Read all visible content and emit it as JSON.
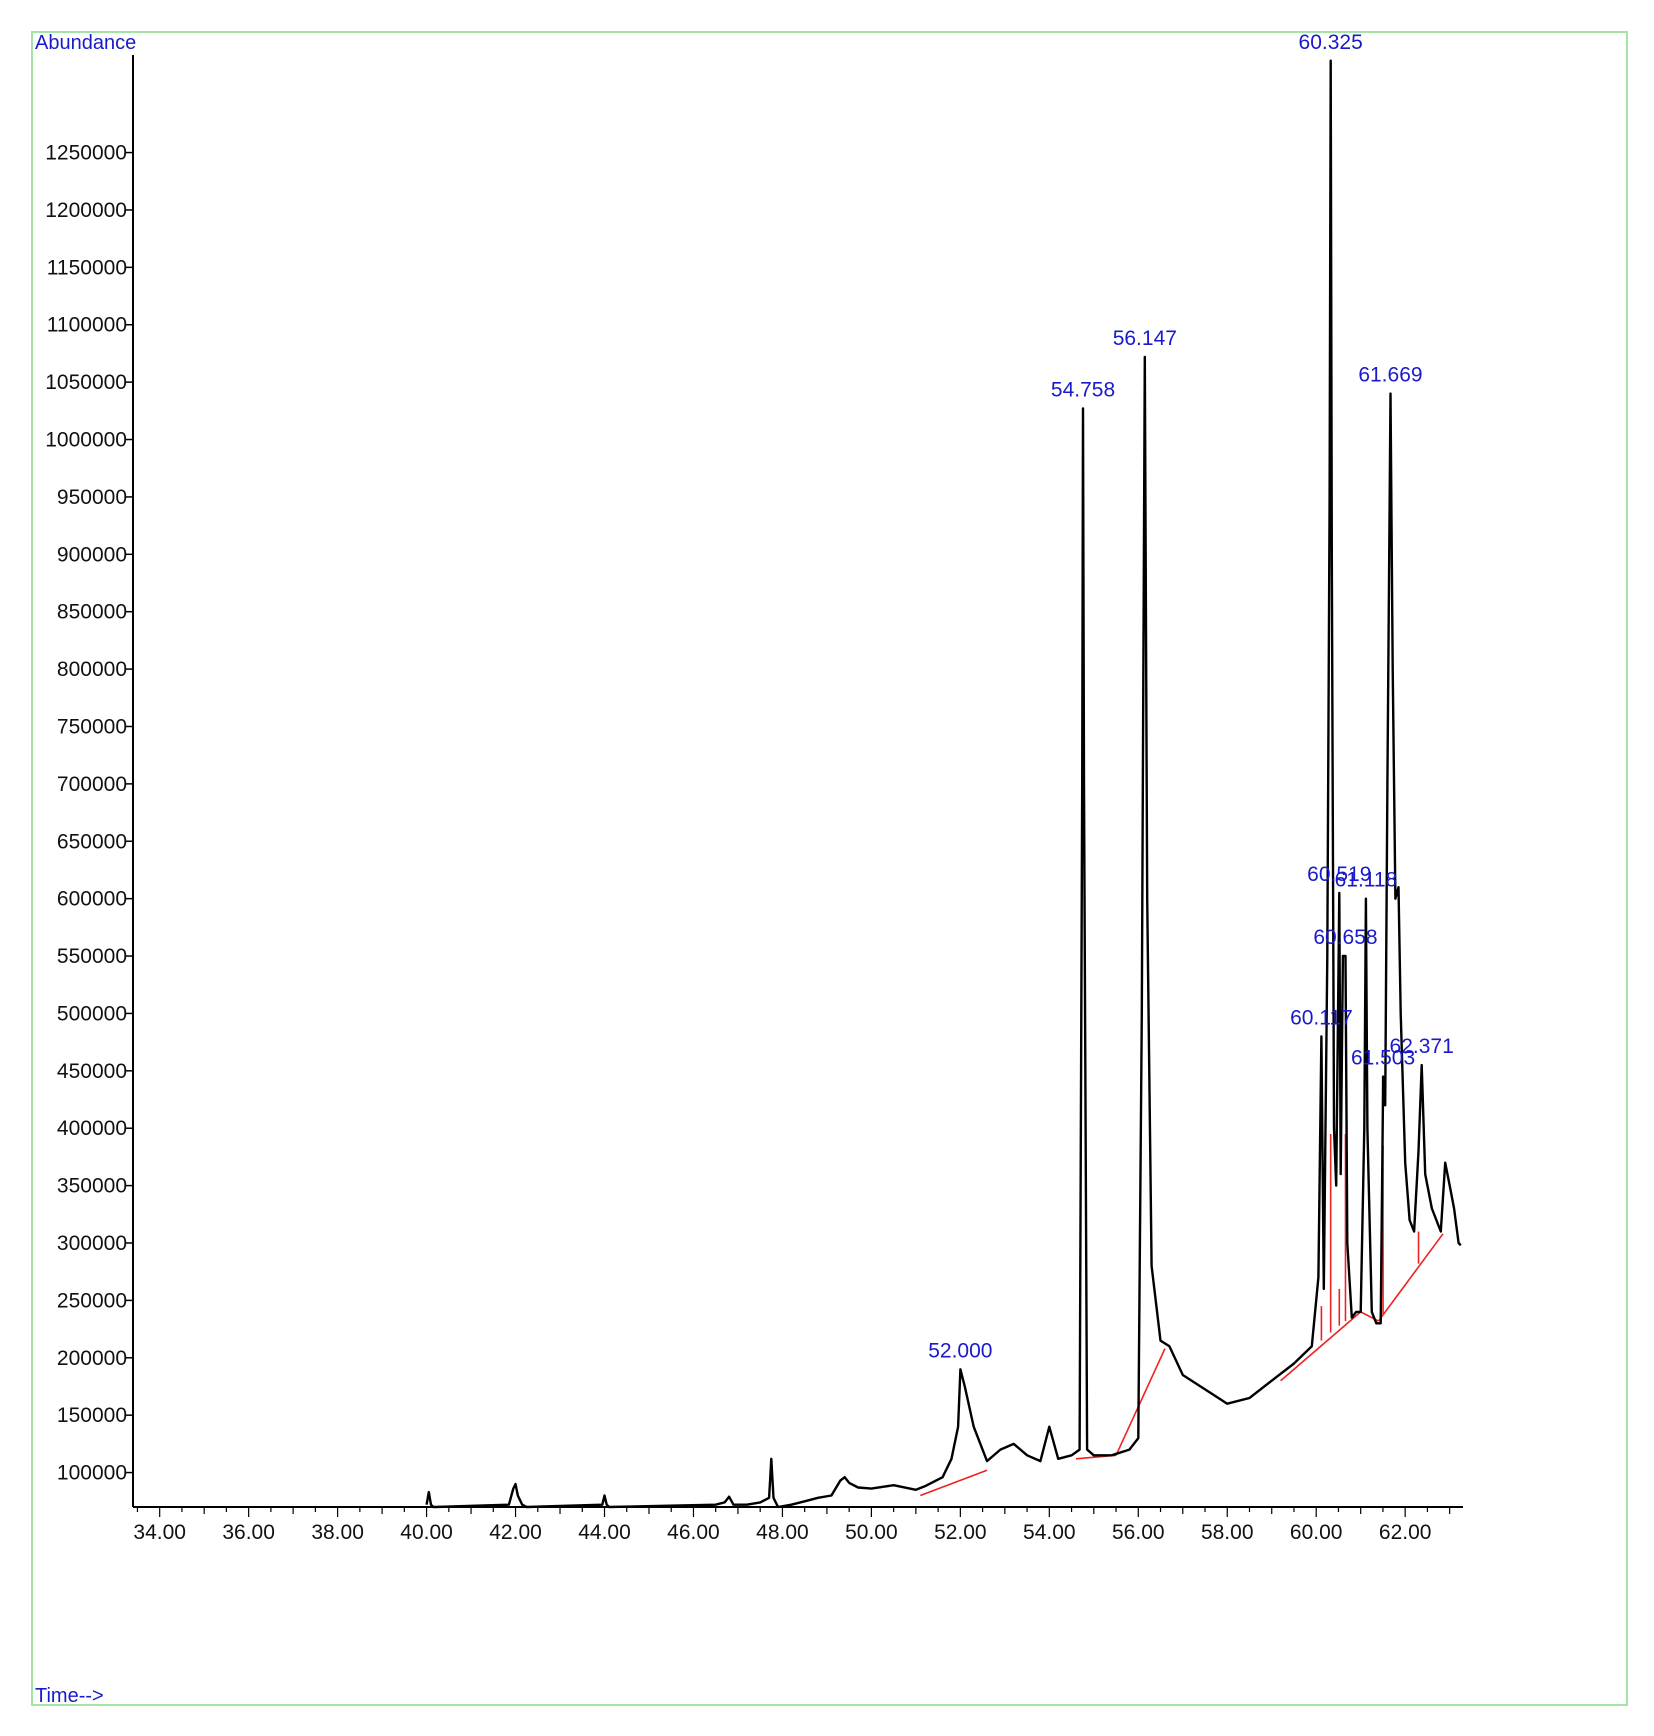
{
  "chart_data": {
    "type": "line",
    "ylabel": "Abundance",
    "xlabel": "Time-->",
    "xlim": [
      33.4,
      63.3
    ],
    "ylim": [
      70000,
      1335000
    ],
    "xticks": [
      "34.00",
      "36.00",
      "38.00",
      "40.00",
      "42.00",
      "44.00",
      "46.00",
      "48.00",
      "50.00",
      "52.00",
      "54.00",
      "56.00",
      "58.00",
      "60.00",
      "62.00"
    ],
    "xtick_values": [
      34,
      36,
      38,
      40,
      42,
      44,
      46,
      48,
      50,
      52,
      54,
      56,
      58,
      60,
      62
    ],
    "yticks": [
      "100000",
      "150000",
      "200000",
      "250000",
      "300000",
      "350000",
      "400000",
      "450000",
      "500000",
      "550000",
      "600000",
      "650000",
      "700000",
      "750000",
      "800000",
      "850000",
      "900000",
      "950000",
      "1000000",
      "1050000",
      "1100000",
      "1150000",
      "1200000",
      "1250000"
    ],
    "ytick_values": [
      100000,
      150000,
      200000,
      250000,
      300000,
      350000,
      400000,
      450000,
      500000,
      550000,
      600000,
      650000,
      700000,
      750000,
      800000,
      850000,
      900000,
      950000,
      1000000,
      1050000,
      1100000,
      1150000,
      1200000,
      1250000
    ],
    "grid": false,
    "series": [
      {
        "color": "#000000",
        "x": [
          40.0,
          40.05,
          40.1,
          40.15,
          40.2,
          41.85,
          41.95,
          42.0,
          42.05,
          42.15,
          42.25,
          43.95,
          44.0,
          44.05,
          44.1,
          46.5,
          46.7,
          46.8,
          46.9,
          47.2,
          47.5,
          47.7,
          47.75,
          47.8,
          47.9,
          48.2,
          48.5,
          48.8,
          49.1,
          49.3,
          49.4,
          49.5,
          49.7,
          50.0,
          50.5,
          51.0,
          51.2,
          51.6,
          51.8,
          51.95,
          52.0,
          52.1,
          52.3,
          52.6,
          52.9,
          53.2,
          53.5,
          53.8,
          54.0,
          54.2,
          54.5,
          54.68,
          54.74,
          54.758,
          54.78,
          54.85,
          55.0,
          55.4,
          55.8,
          56.0,
          56.08,
          56.147,
          56.2,
          56.3,
          56.5,
          56.7,
          57.0,
          57.4,
          57.8,
          58.0,
          58.5,
          59.0,
          59.5,
          59.9,
          60.05,
          60.117,
          60.17,
          60.25,
          60.3,
          60.325,
          60.35,
          60.4,
          60.45,
          60.519,
          60.55,
          60.6,
          60.658,
          60.7,
          60.8,
          60.9,
          61.0,
          61.08,
          61.118,
          61.15,
          61.25,
          61.35,
          61.45,
          61.5,
          61.503,
          61.55,
          61.6,
          61.669,
          61.72,
          61.78,
          61.85,
          61.9,
          62.0,
          62.1,
          62.2,
          62.3,
          62.371,
          62.45,
          62.6,
          62.8,
          62.9,
          63.0,
          63.1,
          63.2,
          63.25
        ],
        "y": [
          72000,
          83000,
          72000,
          70000,
          70000,
          72000,
          86000,
          90000,
          80000,
          72000,
          70000,
          72000,
          80000,
          72000,
          70000,
          72000,
          74000,
          79000,
          72000,
          72000,
          74000,
          78000,
          112000,
          78000,
          70000,
          72000,
          75000,
          78000,
          80000,
          93000,
          96000,
          91000,
          87000,
          86000,
          89000,
          85000,
          88000,
          96000,
          112000,
          140000,
          190000,
          175000,
          140000,
          110000,
          120000,
          125000,
          115000,
          110000,
          140000,
          112000,
          115000,
          120000,
          700000,
          1027000,
          700000,
          120000,
          115000,
          115000,
          120000,
          130000,
          500000,
          1072000,
          600000,
          280000,
          215000,
          210000,
          185000,
          175000,
          165000,
          160000,
          165000,
          180000,
          195000,
          210000,
          270000,
          480000,
          260000,
          550000,
          950000,
          1330000,
          900000,
          400000,
          350000,
          605000,
          360000,
          550000,
          550000,
          300000,
          235000,
          240000,
          240000,
          400000,
          600000,
          400000,
          240000,
          230000,
          230000,
          420000,
          445000,
          420000,
          700000,
          1040000,
          800000,
          600000,
          610000,
          500000,
          370000,
          320000,
          310000,
          380000,
          455000,
          360000,
          330000,
          310000,
          370000,
          350000,
          330000,
          300000,
          298000
        ]
      }
    ],
    "baselines": {
      "color": "#ee2222",
      "segments": [
        [
          [
            51.1,
            80000
          ],
          [
            52.6,
            102000
          ]
        ],
        [
          [
            54.6,
            112000
          ],
          [
            55.5,
            115000
          ]
        ],
        [
          [
            55.5,
            115000
          ],
          [
            56.6,
            208000
          ]
        ],
        [
          [
            59.2,
            180000
          ],
          [
            61.0,
            240000
          ]
        ],
        [
          [
            61.0,
            240000
          ],
          [
            61.4,
            232000
          ]
        ],
        [
          [
            61.4,
            232000
          ],
          [
            62.85,
            308000
          ]
        ]
      ],
      "drops": [
        [
          60.117,
          215000,
          245000
        ],
        [
          60.325,
          222000,
          395000
        ],
        [
          60.519,
          228000,
          260000
        ],
        [
          60.658,
          232000,
          395000
        ],
        [
          61.503,
          238000,
          385000
        ],
        [
          62.3,
          282000,
          310000
        ]
      ]
    },
    "annotations": [
      {
        "text": "52.000",
        "x": 52.0,
        "y": 190000
      },
      {
        "text": "54.758",
        "x": 54.758,
        "y": 1027000
      },
      {
        "text": "56.147",
        "x": 56.147,
        "y": 1072000
      },
      {
        "text": "60.325",
        "x": 60.325,
        "y": 1330000
      },
      {
        "text": "61.669",
        "x": 61.669,
        "y": 1040000
      },
      {
        "text": "60.519",
        "x": 60.519,
        "y": 605000
      },
      {
        "text": "61.118",
        "x": 61.118,
        "y": 600000
      },
      {
        "text": "60.658",
        "x": 60.658,
        "y": 550000
      },
      {
        "text": "60.117",
        "x": 60.117,
        "y": 480000
      },
      {
        "text": "61.503",
        "x": 61.503,
        "y": 445000
      },
      {
        "text": "62.371",
        "x": 62.371,
        "y": 455000
      }
    ]
  }
}
